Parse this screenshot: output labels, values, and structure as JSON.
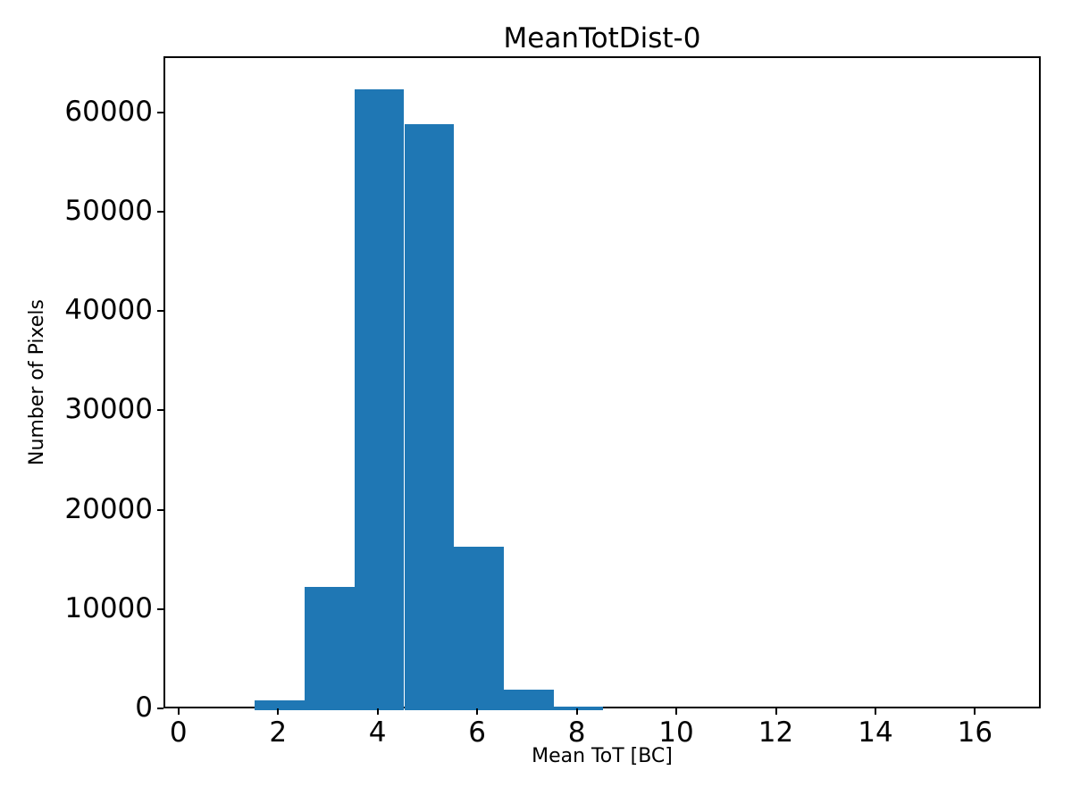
{
  "figure": {
    "title": "MeanTotDist-0"
  },
  "colors": {
    "bar": "#1f77b4",
    "axis": "#000000",
    "background": "#ffffff",
    "text": "#000000"
  },
  "chart_data": {
    "type": "bar",
    "subtype": "histogram",
    "title": "MeanTotDist-0",
    "xlabel": "Mean ToT [BC]",
    "ylabel": "Number of Pixels",
    "bin_edges": [
      0.5,
      1.5,
      2.5,
      3.5,
      4.5,
      5.5,
      6.5,
      7.5,
      8.5,
      9.5,
      10.5,
      11.5,
      12.5,
      13.5,
      14.5,
      15.5,
      16.5
    ],
    "counts": [
      0,
      1000,
      12400,
      62500,
      59000,
      16500,
      2100,
      400,
      0,
      0,
      0,
      0,
      0,
      0,
      0,
      0
    ],
    "xticks": [
      0,
      2,
      4,
      6,
      8,
      10,
      12,
      14,
      16
    ],
    "yticks": [
      0,
      10000,
      20000,
      30000,
      40000,
      50000,
      60000
    ],
    "xlim": [
      -0.3,
      17.32
    ],
    "ylim": [
      0,
      65625
    ],
    "grid": false,
    "legend": null,
    "bar_color": "#1f77b4"
  }
}
